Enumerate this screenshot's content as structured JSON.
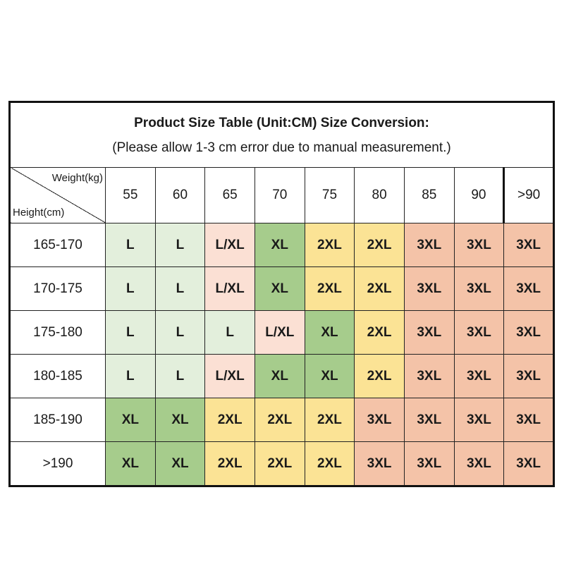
{
  "title": {
    "line1": "Product Size Table (Unit:CM) Size Conversion:",
    "line2": "(Please allow 1-3 cm error due to manual measurement.)"
  },
  "corner": {
    "weight_label": "Weight(kg)",
    "height_label": "Height(cm)"
  },
  "weights": [
    "55",
    "60",
    "65",
    "70",
    "75",
    "80",
    "85",
    "90",
    ">90"
  ],
  "rows": [
    {
      "height": "165-170",
      "sizes": [
        "L",
        "L",
        "L/XL",
        "XL",
        "2XL",
        "2XL",
        "3XL",
        "3XL",
        "3XL"
      ]
    },
    {
      "height": "170-175",
      "sizes": [
        "L",
        "L",
        "L/XL",
        "XL",
        "2XL",
        "2XL",
        "3XL",
        "3XL",
        "3XL"
      ]
    },
    {
      "height": "175-180",
      "sizes": [
        "L",
        "L",
        "L",
        "L/XL",
        "XL",
        "2XL",
        "3XL",
        "3XL",
        "3XL"
      ]
    },
    {
      "height": "180-185",
      "sizes": [
        "L",
        "L",
        "L/XL",
        "XL",
        "XL",
        "2XL",
        "3XL",
        "3XL",
        "3XL"
      ]
    },
    {
      "height": "185-190",
      "sizes": [
        "XL",
        "XL",
        "2XL",
        "2XL",
        "2XL",
        "3XL",
        "3XL",
        "3XL",
        "3XL"
      ]
    },
    {
      "height": ">190",
      "sizes": [
        "XL",
        "XL",
        "2XL",
        "2XL",
        "2XL",
        "3XL",
        "3XL",
        "3XL",
        "3XL"
      ]
    }
  ],
  "colors": {
    "L": "#e3efdc",
    "L/XL": "#fbe0d4",
    "XL": "#a6cc8c",
    "2XL": "#fbe395",
    "3XL": "#f4c3a8"
  }
}
